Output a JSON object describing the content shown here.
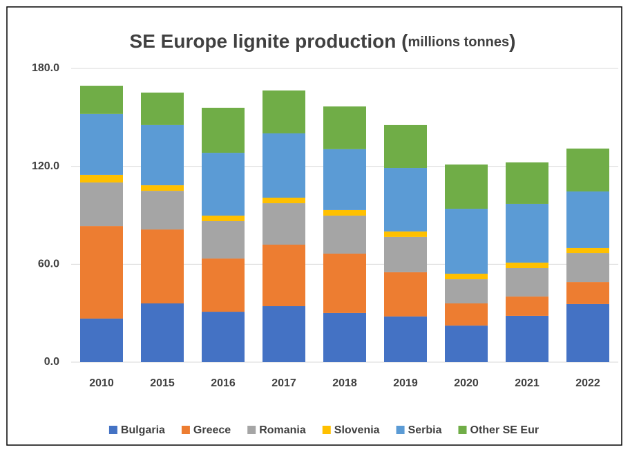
{
  "chart_data": {
    "type": "stacked_bar",
    "title": [
      "SE Europe lignite production (",
      "millions tonnes",
      ")"
    ],
    "categories": [
      "2010",
      "2015",
      "2016",
      "2017",
      "2018",
      "2019",
      "2020",
      "2021",
      "2022"
    ],
    "series": [
      {
        "name": "Bulgaria",
        "color": "#4472c4",
        "values": [
          26.7,
          36.0,
          30.9,
          34.3,
          30.1,
          28.0,
          22.4,
          28.4,
          35.6
        ]
      },
      {
        "name": "Greece",
        "color": "#ed7d31",
        "values": [
          56.7,
          45.3,
          32.6,
          37.7,
          36.4,
          27.1,
          13.6,
          11.8,
          13.5
        ]
      },
      {
        "name": "Romania",
        "color": "#a5a5a5",
        "values": [
          26.7,
          23.7,
          22.9,
          25.4,
          23.3,
          21.6,
          14.8,
          17.4,
          17.8
        ]
      },
      {
        "name": "Slovenia",
        "color": "#ffc000",
        "values": [
          4.7,
          3.4,
          3.4,
          3.4,
          3.4,
          3.4,
          3.4,
          3.4,
          3.0
        ]
      },
      {
        "name": "Serbia",
        "color": "#5b9bd5",
        "values": [
          37.3,
          36.9,
          38.5,
          39.4,
          37.3,
          38.9,
          39.8,
          36.0,
          34.7
        ]
      },
      {
        "name": "Other SE Eur",
        "color": "#70ad47",
        "values": [
          17.3,
          19.9,
          27.6,
          26.3,
          26.2,
          26.3,
          27.1,
          25.4,
          26.3
        ]
      }
    ],
    "ylim": [
      0,
      180
    ],
    "yticks": [
      {
        "value": 0,
        "label": "0.0"
      },
      {
        "value": 60,
        "label": "60.0"
      },
      {
        "value": 120,
        "label": "120.0"
      },
      {
        "value": 180,
        "label": "180.0"
      }
    ],
    "grid": true,
    "legend": "bottom"
  }
}
